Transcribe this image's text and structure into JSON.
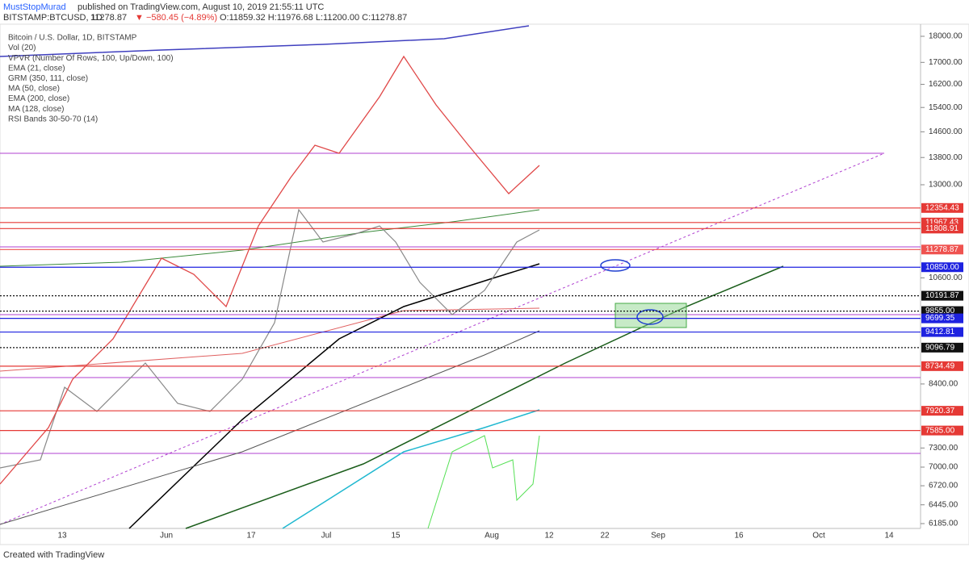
{
  "header": {
    "author": "MustStopMurad",
    "published": "published on TradingView.com, August 10, 2019 21:55:11 UTC",
    "symbol": "BITSTAMP:BTCUSD, 1D",
    "last": "11278.87",
    "change": "▼ −580.45 (−4.89%)",
    "ohlc": "O:11859.32 H:11976.68 L:11200.00 C:11278.87"
  },
  "indicators": [
    "Bitcoin / U.S. Dollar, 1D, BITSTAMP",
    "Vol (20)",
    "VPVR (Number Of Rows, 100, Up/Down, 100)",
    "EMA (21, close)",
    "GRM (350, 111, close)",
    "MA (50, close)",
    "EMA (200, close)",
    "MA (128, close)",
    "RSI Bands 30-50-70 (14)"
  ],
  "price_axis": {
    "log": true,
    "lim": [
      6185,
      18000
    ],
    "ticks": [
      {
        "value": 18000,
        "label": "18000.00"
      },
      {
        "value": 17000,
        "label": "17000.00"
      },
      {
        "value": 16200,
        "label": "16200.00"
      },
      {
        "value": 15400,
        "label": "15400.00"
      },
      {
        "value": 14600,
        "label": "14600.00"
      },
      {
        "value": 13800,
        "label": "13800.00"
      },
      {
        "value": 13000,
        "label": "13000.00"
      },
      {
        "value": 10600,
        "label": "10600.00"
      },
      {
        "value": 8400,
        "label": "8400.00"
      },
      {
        "value": 7300,
        "label": "7300.00"
      },
      {
        "value": 7000,
        "label": "7000.00"
      },
      {
        "value": 6720,
        "label": "6720.00"
      },
      {
        "value": 6445,
        "label": "6445.00"
      },
      {
        "value": 6185,
        "label": "6185.00"
      }
    ]
  },
  "price_labels": [
    {
      "value": 12354.43,
      "label": "12354.43",
      "color": "#e53935"
    },
    {
      "value": 11967.43,
      "label": "11967.43",
      "color": "#e53935"
    },
    {
      "value": 11808.91,
      "label": "11808.91",
      "color": "#e53935"
    },
    {
      "value": 11278.87,
      "label": "11278.87",
      "color": "#ef5350"
    },
    {
      "value": 10850,
      "label": "10850.00",
      "color": "#1e22e0"
    },
    {
      "value": 10191.87,
      "label": "10191.87",
      "color": "#111111"
    },
    {
      "value": 9855,
      "label": "9855.00",
      "color": "#111111"
    },
    {
      "value": 9699.35,
      "label": "9699.35",
      "color": "#1e22e0"
    },
    {
      "value": 9412.81,
      "label": "9412.81",
      "color": "#1e22e0"
    },
    {
      "value": 9096.79,
      "label": "9096.79",
      "color": "#111111"
    },
    {
      "value": 8734.49,
      "label": "8734.49",
      "color": "#e53935"
    },
    {
      "value": 7920.37,
      "label": "7920.37",
      "color": "#e53935"
    },
    {
      "value": 7585,
      "label": "7585.00",
      "color": "#e53935"
    }
  ],
  "time_axis": [
    "13",
    "Jun",
    "17",
    "Jul",
    "15",
    "Aug",
    "12",
    "22",
    "Sep",
    "16",
    "Oct",
    "14"
  ],
  "footer": "Created with TradingView"
}
